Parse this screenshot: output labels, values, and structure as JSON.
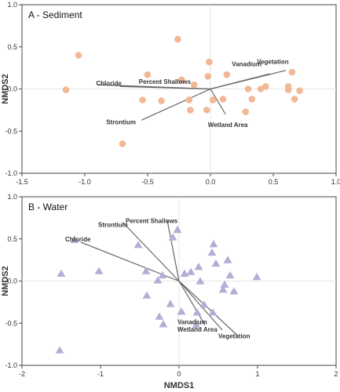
{
  "chart_data": [
    {
      "type": "scatter",
      "title": "A - Sediment",
      "xlabel": "",
      "ylabel": "NMDS2",
      "xlim": [
        -1.5,
        1.0
      ],
      "ylim": [
        -1.0,
        1.0
      ],
      "xticks": [
        -1.5,
        -1.0,
        -0.5,
        0.0,
        0.5,
        1.0
      ],
      "yticks": [
        -1.0,
        -0.5,
        0.0,
        0.5,
        1.0
      ],
      "xtick_labels": [
        "-1.5",
        "-1.0",
        "-0.5",
        "0.0",
        "0.5",
        "1.0"
      ],
      "ytick_labels": [
        "-1.0",
        "-0.5",
        "0.0",
        "0.5",
        "1.0"
      ],
      "marker": "circle",
      "marker_color": "#f2b896",
      "vector_color": "#666666",
      "points": [
        {
          "x": -1.05,
          "y": 0.4
        },
        {
          "x": -1.15,
          "y": -0.01
        },
        {
          "x": -0.7,
          "y": -0.65
        },
        {
          "x": -0.54,
          "y": -0.13
        },
        {
          "x": -0.5,
          "y": 0.17
        },
        {
          "x": -0.39,
          "y": -0.14
        },
        {
          "x": -0.26,
          "y": 0.59
        },
        {
          "x": -0.23,
          "y": 0.11
        },
        {
          "x": -0.17,
          "y": -0.13
        },
        {
          "x": -0.16,
          "y": -0.25
        },
        {
          "x": -0.13,
          "y": 0.05
        },
        {
          "x": -0.03,
          "y": -0.25
        },
        {
          "x": -0.02,
          "y": 0.15
        },
        {
          "x": -0.01,
          "y": 0.32
        },
        {
          "x": 0.02,
          "y": -0.13
        },
        {
          "x": 0.1,
          "y": -0.12
        },
        {
          "x": 0.13,
          "y": 0.17
        },
        {
          "x": 0.28,
          "y": -0.27
        },
        {
          "x": 0.3,
          "y": 0.0
        },
        {
          "x": 0.33,
          "y": -0.12
        },
        {
          "x": 0.4,
          "y": 0.0
        },
        {
          "x": 0.44,
          "y": 0.03
        },
        {
          "x": 0.62,
          "y": 0.03
        },
        {
          "x": 0.62,
          "y": -0.01
        },
        {
          "x": 0.65,
          "y": 0.2
        },
        {
          "x": 0.67,
          "y": -0.12
        },
        {
          "x": 0.71,
          "y": -0.02
        }
      ],
      "vectors": [
        {
          "name": "Vegetation",
          "x": 0.6,
          "y": 0.22,
          "lx": 0.37,
          "ly": 0.3
        },
        {
          "name": "Vanadium",
          "x": 0.47,
          "y": 0.18,
          "lx": 0.17,
          "ly": 0.27
        },
        {
          "name": "Percent Shallows",
          "x": -0.72,
          "y": 0.03,
          "lx": -0.57,
          "ly": 0.06
        },
        {
          "name": "Chloride",
          "x": -0.9,
          "y": 0.05,
          "lx": -0.91,
          "ly": 0.04
        },
        {
          "name": "Strontium",
          "x": -0.55,
          "y": -0.37,
          "lx": -0.83,
          "ly": -0.42
        },
        {
          "name": "Wetland Area",
          "x": 0.12,
          "y": -0.3,
          "lx": -0.02,
          "ly": -0.45
        }
      ]
    },
    {
      "type": "scatter",
      "title": "B - Water",
      "xlabel": "NMDS1",
      "ylabel": "NMDS2",
      "xlim": [
        -2.0,
        2.0
      ],
      "ylim": [
        -1.0,
        1.0
      ],
      "xticks": [
        -2,
        -1,
        0,
        1,
        2
      ],
      "yticks": [
        -1.0,
        -0.5,
        0.0,
        0.5,
        1.0
      ],
      "xtick_labels": [
        "-2",
        "-1",
        "0",
        "1",
        "2"
      ],
      "ytick_labels": [
        "-1.0",
        "-0.5",
        "0.0",
        "0.5",
        "1.0"
      ],
      "marker": "triangle",
      "marker_color": "#b3aed6",
      "vector_color": "#666666",
      "points": [
        {
          "x": -1.52,
          "y": -0.82
        },
        {
          "x": -1.5,
          "y": 0.09
        },
        {
          "x": -1.33,
          "y": 0.49
        },
        {
          "x": -1.02,
          "y": 0.12
        },
        {
          "x": -0.52,
          "y": 0.43
        },
        {
          "x": -0.42,
          "y": 0.12
        },
        {
          "x": -0.41,
          "y": -0.17
        },
        {
          "x": -0.27,
          "y": 0.01
        },
        {
          "x": -0.25,
          "y": -0.42
        },
        {
          "x": -0.21,
          "y": 0.07
        },
        {
          "x": -0.2,
          "y": -0.51
        },
        {
          "x": -0.11,
          "y": -0.27
        },
        {
          "x": -0.08,
          "y": 0.52
        },
        {
          "x": -0.02,
          "y": 0.61
        },
        {
          "x": 0.03,
          "y": -0.36
        },
        {
          "x": 0.07,
          "y": 0.09
        },
        {
          "x": 0.15,
          "y": 0.11
        },
        {
          "x": 0.22,
          "y": -0.52
        },
        {
          "x": 0.23,
          "y": -0.37
        },
        {
          "x": 0.25,
          "y": 0.17
        },
        {
          "x": 0.27,
          "y": 0.0
        },
        {
          "x": 0.32,
          "y": -0.28
        },
        {
          "x": 0.42,
          "y": 0.34
        },
        {
          "x": 0.43,
          "y": -0.37
        },
        {
          "x": 0.44,
          "y": 0.44
        },
        {
          "x": 0.47,
          "y": 0.21
        },
        {
          "x": 0.56,
          "y": -0.1
        },
        {
          "x": 0.58,
          "y": -0.04
        },
        {
          "x": 0.62,
          "y": 0.25
        },
        {
          "x": 0.65,
          "y": 0.07
        },
        {
          "x": 0.7,
          "y": -0.12
        },
        {
          "x": 0.99,
          "y": 0.05
        }
      ],
      "vectors": [
        {
          "name": "Chloride",
          "x": -1.25,
          "y": 0.46,
          "lx": -1.45,
          "ly": 0.47
        },
        {
          "name": "Strontium",
          "x": -0.72,
          "y": 0.7,
          "lx": -1.03,
          "ly": 0.64
        },
        {
          "name": "Percent Shallows",
          "x": -0.15,
          "y": 0.72,
          "lx": -0.68,
          "ly": 0.69
        },
        {
          "name": "Vanadium",
          "x": 0.33,
          "y": -0.52,
          "lx": -0.02,
          "ly": -0.51
        },
        {
          "name": "Wetland Area",
          "x": 0.55,
          "y": -0.58,
          "lx": -0.02,
          "ly": -0.6
        },
        {
          "name": "Vegetation",
          "x": 0.75,
          "y": -0.65,
          "lx": 0.5,
          "ly": -0.68
        }
      ]
    }
  ]
}
